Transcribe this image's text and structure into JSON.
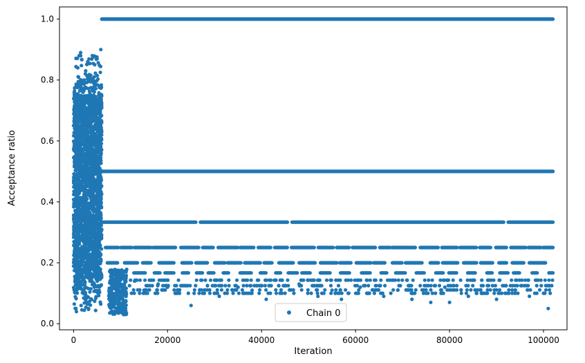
{
  "chart_data": {
    "type": "scatter",
    "xlabel": "Iteration",
    "ylabel": "Acceptance ratio",
    "xlim": [
      -3000,
      105000
    ],
    "ylim": [
      -0.02,
      1.04
    ],
    "xticks": [
      0,
      20000,
      40000,
      60000,
      80000,
      100000
    ],
    "yticks": [
      0.0,
      0.2,
      0.4,
      0.6,
      0.8,
      1.0
    ],
    "xtick_labels": [
      "0",
      "20000",
      "40000",
      "60000",
      "80000",
      "100000"
    ],
    "ytick_labels": [
      "0.0",
      "0.2",
      "0.4",
      "0.6",
      "0.8",
      "1.0"
    ],
    "grid": false,
    "legend_position": "lower center",
    "color": "#1f77b4",
    "series": [
      {
        "name": "Chain 0",
        "marker": "circle",
        "description_levels": [
          1.0,
          0.5,
          0.3333,
          0.25,
          0.2,
          0.1667,
          0.1429,
          0.125
        ],
        "burn_in_end": 6000,
        "points": [
          [
            500,
            0.05
          ],
          [
            900,
            0.84
          ],
          [
            1200,
            0.88
          ],
          [
            1500,
            0.89
          ],
          [
            2000,
            0.76
          ],
          [
            2500,
            0.82
          ],
          [
            3000,
            0.86
          ],
          [
            3500,
            0.8
          ],
          [
            4000,
            0.88
          ],
          [
            4500,
            0.85
          ],
          [
            5000,
            0.87
          ],
          [
            5800,
            0.9
          ],
          [
            700,
            0.62
          ],
          [
            1300,
            0.55
          ],
          [
            1800,
            0.45
          ],
          [
            2300,
            0.38
          ],
          [
            2900,
            0.3
          ],
          [
            3400,
            0.22
          ],
          [
            3900,
            0.15
          ],
          [
            4400,
            0.12
          ],
          [
            5200,
            0.1
          ],
          [
            600,
            0.04
          ],
          [
            1600,
            0.06
          ],
          [
            3200,
            0.05
          ],
          [
            8000,
            0.1
          ],
          [
            9000,
            0.07
          ],
          [
            10000,
            0.05
          ],
          [
            10500,
            0.04
          ],
          [
            11000,
            0.06
          ],
          [
            13000,
            0.14
          ],
          [
            15000,
            0.11
          ],
          [
            18000,
            0.13
          ],
          [
            20000,
            0.12
          ],
          [
            22000,
            0.1
          ],
          [
            25000,
            0.06
          ],
          [
            29000,
            0.1
          ],
          [
            31000,
            0.09
          ],
          [
            35000,
            0.12
          ],
          [
            38000,
            0.11
          ],
          [
            41000,
            0.08
          ],
          [
            45000,
            0.1
          ],
          [
            48000,
            0.13
          ],
          [
            52000,
            0.09
          ],
          [
            55000,
            0.11
          ],
          [
            57000,
            0.08
          ],
          [
            61000,
            0.12
          ],
          [
            64000,
            0.1
          ],
          [
            66000,
            0.09
          ],
          [
            69000,
            0.11
          ],
          [
            72000,
            0.08
          ],
          [
            75000,
            0.1
          ],
          [
            76000,
            0.07
          ],
          [
            79000,
            0.12
          ],
          [
            80000,
            0.07
          ],
          [
            84000,
            0.09
          ],
          [
            87000,
            0.1
          ],
          [
            90000,
            0.08
          ],
          [
            94000,
            0.11
          ],
          [
            97000,
            0.09
          ],
          [
            100000,
            0.1
          ],
          [
            101000,
            0.05
          ]
        ]
      }
    ]
  }
}
